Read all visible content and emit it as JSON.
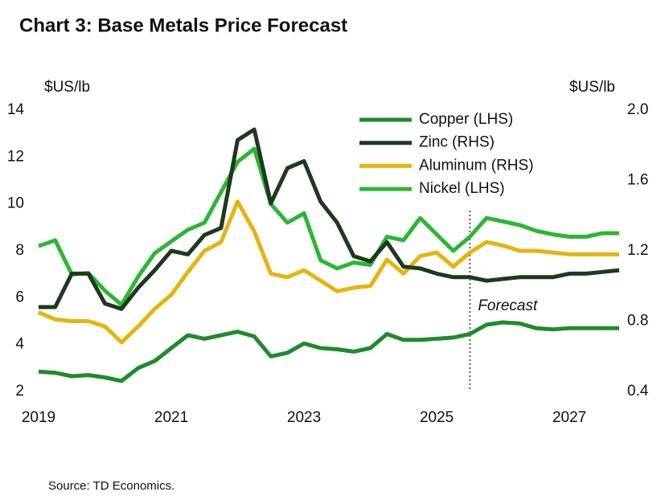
{
  "chart_data": {
    "type": "line",
    "title": "Chart 3: Base Metals Price Forecast",
    "y_label": "$US/lb",
    "y2_label": "$US/lb",
    "source": "Source: TD Economics.",
    "annotation": {
      "text": "Forecast",
      "x": 2025.5
    },
    "x": [
      2019,
      2019.25,
      2019.5,
      2019.75,
      2020,
      2020.25,
      2020.5,
      2020.75,
      2021,
      2021.25,
      2021.5,
      2021.75,
      2022,
      2022.25,
      2022.5,
      2022.75,
      2023,
      2023.25,
      2023.5,
      2023.75,
      2024,
      2024.25,
      2024.5,
      2024.75,
      2025,
      2025.25,
      2025.5,
      2025.75,
      2026,
      2026.25,
      2026.5,
      2026.75,
      2027,
      2027.25,
      2027.5,
      2027.75
    ],
    "xlim": [
      2019,
      2027.75
    ],
    "xticks": [
      2019,
      2021,
      2023,
      2025,
      2027
    ],
    "ylim": [
      2,
      14
    ],
    "yticks": [
      2,
      4,
      6,
      8,
      10,
      12,
      14
    ],
    "y2lim": [
      0.4,
      2.0
    ],
    "y2ticks": [
      0.4,
      0.8,
      1.2,
      1.6,
      {
        "value": 2.0,
        "label": "2.0"
      }
    ],
    "legend": "upper right",
    "series": [
      {
        "name": "Copper (LHS)",
        "color": "#1e8c2c",
        "values": [
          2.85,
          2.8,
          2.65,
          2.7,
          2.6,
          2.45,
          3.0,
          3.3,
          3.85,
          4.4,
          4.25,
          4.4,
          4.55,
          4.35,
          3.5,
          3.65,
          4.05,
          3.85,
          3.8,
          3.7,
          3.85,
          4.45,
          4.2,
          4.2,
          4.25,
          4.3,
          4.45,
          4.85,
          4.95,
          4.9,
          4.7,
          4.65,
          4.7,
          4.7,
          4.7,
          4.7
        ]
      },
      {
        "name": "Zinc (RHS)",
        "color": "#1d3a1c",
        "axis": "y2",
        "values": [
          0.88,
          0.88,
          1.07,
          1.07,
          0.9,
          0.87,
          0.99,
          1.09,
          1.2,
          1.18,
          1.29,
          1.33,
          1.83,
          1.89,
          1.47,
          1.67,
          1.71,
          1.48,
          1.36,
          1.17,
          1.14,
          1.25,
          1.11,
          1.1,
          1.07,
          1.05,
          1.05,
          1.03,
          1.04,
          1.05,
          1.05,
          1.05,
          1.07,
          1.07,
          1.08,
          1.09
        ]
      },
      {
        "name": "Aluminum (RHS)",
        "color": "#e6b40c",
        "axis": "y2",
        "values": [
          0.85,
          0.81,
          0.8,
          0.8,
          0.77,
          0.68,
          0.77,
          0.87,
          0.95,
          1.08,
          1.2,
          1.25,
          1.48,
          1.31,
          1.07,
          1.05,
          1.09,
          1.03,
          0.97,
          0.99,
          1.0,
          1.15,
          1.07,
          1.17,
          1.19,
          1.11,
          1.19,
          1.25,
          1.23,
          1.2,
          1.2,
          1.19,
          1.18,
          1.18,
          1.18,
          1.18
        ]
      },
      {
        "name": "Nickel (LHS)",
        "color": "#2db634",
        "values": [
          8.2,
          8.45,
          7.0,
          7.05,
          6.3,
          5.7,
          6.9,
          7.9,
          8.4,
          8.9,
          9.2,
          10.5,
          11.8,
          12.35,
          10.0,
          9.2,
          9.6,
          7.6,
          7.25,
          7.5,
          7.4,
          8.6,
          8.45,
          9.4,
          8.7,
          8.0,
          8.6,
          9.4,
          9.25,
          9.1,
          8.85,
          8.7,
          8.6,
          8.6,
          8.75,
          8.75
        ]
      }
    ]
  }
}
